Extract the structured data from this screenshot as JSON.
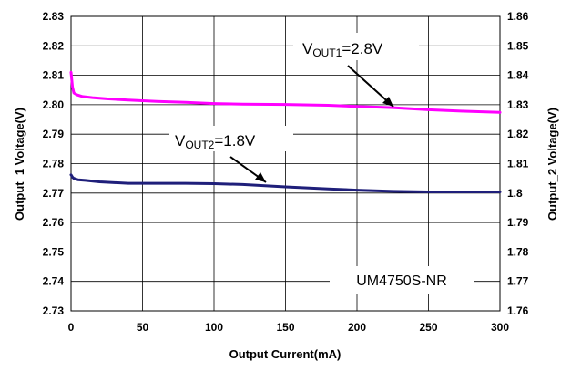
{
  "chart_data": {
    "type": "line",
    "xlabel": "Output Current(mA)",
    "ylabel_left": "Output_1  Voltage(V)",
    "ylabel_right": "Output_2  Voltage(V)",
    "xlim": [
      0,
      300
    ],
    "ylim_left": [
      2.73,
      2.83
    ],
    "ylim_right": [
      1.76,
      1.86
    ],
    "x_ticks": [
      "0",
      "50",
      "100",
      "150",
      "200",
      "250",
      "300"
    ],
    "y_ticks_left": [
      "2.83",
      "2.82",
      "2.81",
      "2.80",
      "2.79",
      "2.78",
      "2.77",
      "2.76",
      "2.75",
      "2.74",
      "2.73"
    ],
    "y_ticks_right": [
      "1.86",
      "1.85",
      "1.84",
      "1.83",
      "1.82",
      "1.81",
      "1.8",
      "1.79",
      "1.78",
      "1.77",
      "1.76"
    ],
    "grid": true,
    "series": [
      {
        "axis": "left",
        "color": "#ff00ff",
        "x": [
          0,
          1,
          2,
          4,
          8,
          15,
          25,
          40,
          60,
          80,
          100,
          120,
          150,
          180,
          200,
          225,
          250,
          275,
          300
        ],
        "y": [
          2.811,
          2.806,
          2.804,
          2.8034,
          2.8028,
          2.8024,
          2.802,
          2.8016,
          2.8011,
          2.8008,
          2.8004,
          2.8002,
          2.8001,
          2.7998,
          2.7994,
          2.799,
          2.7983,
          2.7978,
          2.7974
        ]
      },
      {
        "axis": "right",
        "color": "#1f1f7a",
        "x": [
          0,
          1,
          2,
          5,
          10,
          20,
          40,
          60,
          80,
          100,
          120,
          150,
          180,
          200,
          225,
          250,
          275,
          300
        ],
        "y": [
          1.8062,
          1.8054,
          1.805,
          1.8045,
          1.8043,
          1.8038,
          1.8033,
          1.8033,
          1.8033,
          1.8032,
          1.8029,
          1.8021,
          1.8014,
          1.801,
          1.8006,
          1.8004,
          1.8004,
          1.8004
        ]
      }
    ],
    "annotations": [
      {
        "main": "V",
        "sub": "OUT1",
        "value": "=2.8V"
      },
      {
        "main": "V",
        "sub": "OUT2",
        "value": "=1.8V"
      }
    ],
    "model_label": "UM4750S-NR"
  }
}
